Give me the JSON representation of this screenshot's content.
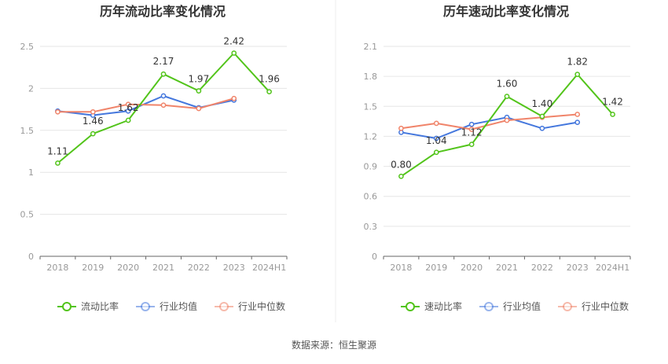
{
  "source_text": "数据来源：恒生聚源",
  "colors": {
    "primary": "#52c41a",
    "industry_avg": "#4477dd",
    "industry_median": "#f0846a",
    "grid": "#e6e6e6",
    "axis_text": "#999999",
    "title": "#333333"
  },
  "chart_data": [
    {
      "type": "line",
      "title": "历年流动比率变化情况",
      "categories": [
        "2018",
        "2019",
        "2020",
        "2021",
        "2022",
        "2023",
        "2024H1"
      ],
      "ylim": [
        0,
        2.5
      ],
      "yticks": [
        "0",
        "0.5",
        "1",
        "1.5",
        "2",
        "2.5"
      ],
      "grid": true,
      "legend_position": "bottom",
      "series": [
        {
          "name": "流动比率",
          "color": "#52c41a",
          "values": [
            1.11,
            1.46,
            1.62,
            2.17,
            1.97,
            2.42,
            1.96
          ],
          "labels": [
            "1.11",
            "1.46",
            "1.62",
            "2.17",
            "1.97",
            "2.42",
            "1.96"
          ]
        },
        {
          "name": "行业均值",
          "color": "#4477dd",
          "values": [
            1.73,
            1.68,
            1.73,
            1.91,
            1.77,
            1.86,
            null
          ]
        },
        {
          "name": "行业中位数",
          "color": "#f0846a",
          "values": [
            1.72,
            1.72,
            1.81,
            1.8,
            1.76,
            1.88,
            null
          ]
        }
      ]
    },
    {
      "type": "line",
      "title": "历年速动比率变化情况",
      "categories": [
        "2018",
        "2019",
        "2020",
        "2021",
        "2022",
        "2023",
        "2024H1"
      ],
      "ylim": [
        0,
        2.1
      ],
      "yticks": [
        "0",
        "0.3",
        "0.6",
        "0.9",
        "1.2",
        "1.5",
        "1.8",
        "2.1"
      ],
      "grid": true,
      "legend_position": "bottom",
      "series": [
        {
          "name": "速动比率",
          "color": "#52c41a",
          "values": [
            0.8,
            1.04,
            1.12,
            1.6,
            1.4,
            1.82,
            1.42
          ],
          "labels": [
            "0.80",
            "1.04",
            "1.12",
            "1.60",
            "1.40",
            "1.82",
            "1.42"
          ]
        },
        {
          "name": "行业均值",
          "color": "#4477dd",
          "values": [
            1.24,
            1.18,
            1.32,
            1.39,
            1.28,
            1.34,
            null
          ]
        },
        {
          "name": "行业中位数",
          "color": "#f0846a",
          "values": [
            1.28,
            1.33,
            1.27,
            1.36,
            1.39,
            1.42,
            null
          ]
        }
      ]
    }
  ]
}
